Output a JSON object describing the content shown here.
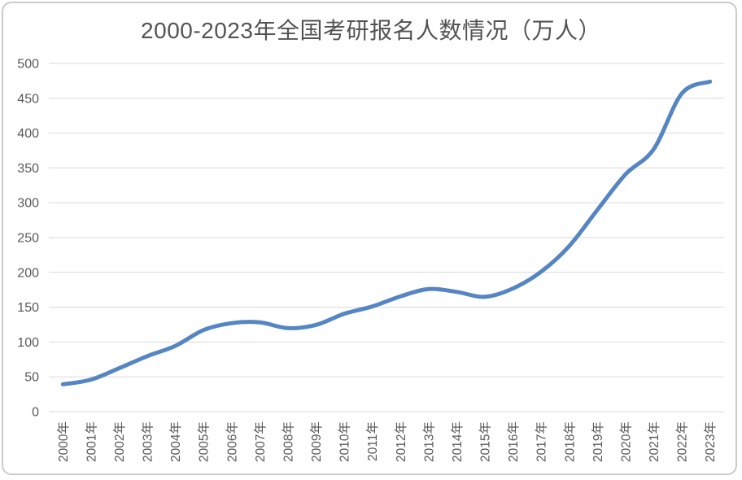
{
  "page": {
    "background": "#ffffff",
    "border_color": "#cbcbcb"
  },
  "chart_data": {
    "type": "line",
    "title": "2000-2023年全国考研报名人数情况（万人）",
    "categories": [
      "2000年",
      "2001年",
      "2002年",
      "2003年",
      "2004年",
      "2005年",
      "2006年",
      "2007年",
      "2008年",
      "2009年",
      "2010年",
      "2011年",
      "2012年",
      "2013年",
      "2014年",
      "2015年",
      "2016年",
      "2017年",
      "2018年",
      "2019年",
      "2020年",
      "2021年",
      "2022年",
      "2023年"
    ],
    "values": [
      39.2,
      46,
      62.4,
      79.7,
      94.5,
      117.2,
      127.1,
      128.2,
      120,
      124.6,
      140.6,
      151.1,
      165.6,
      176,
      172,
      164.9,
      177,
      201,
      238,
      290,
      341,
      377,
      457,
      474
    ],
    "xlabel": "",
    "ylabel": "",
    "ylim": [
      0,
      500
    ],
    "ytick_step": 50,
    "yticks": [
      0,
      50,
      100,
      150,
      200,
      250,
      300,
      350,
      400,
      450,
      500
    ],
    "grid": true,
    "legend_position": "none",
    "smooth": true,
    "line_color": "#5585c2",
    "line_width": 5,
    "gridline_color": "#d9d9d9",
    "title_color": "#535353",
    "tick_label_color": "#595959"
  }
}
